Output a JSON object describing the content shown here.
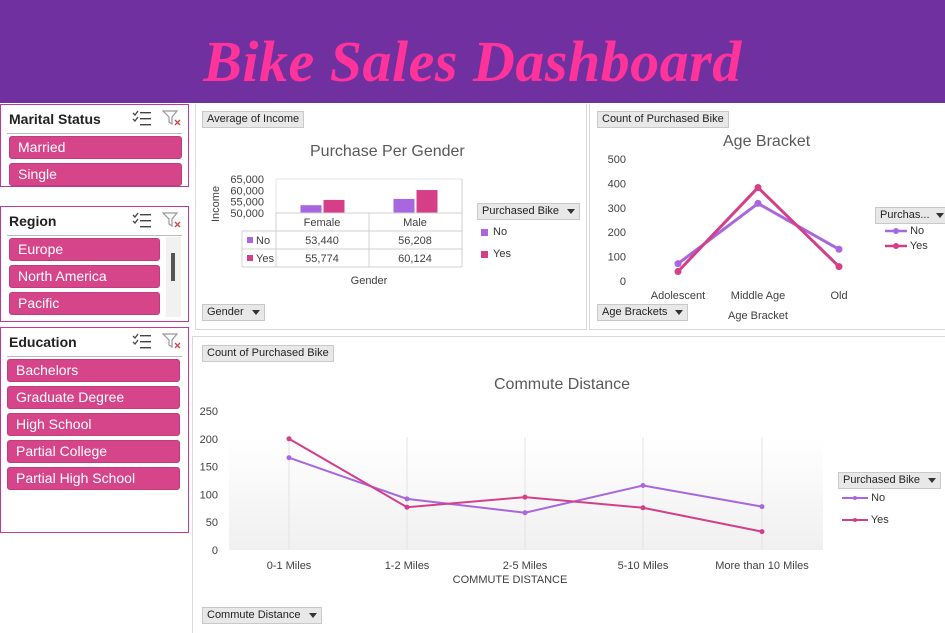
{
  "header": {
    "title": "Bike Sales Dashboard"
  },
  "colors": {
    "header_bg": "#7030a0",
    "title": "#ff3399",
    "slicer_item": "#d6458a",
    "series_no": "#a866e0",
    "series_yes": "#d43f88"
  },
  "slicers": {
    "marital": {
      "title": "Marital Status",
      "items": [
        "Married",
        "Single"
      ]
    },
    "region": {
      "title": "Region",
      "items": [
        "Europe",
        "North America",
        "Pacific"
      ]
    },
    "education": {
      "title": "Education",
      "items": [
        "Bachelors",
        "Graduate Degree",
        "High School",
        "Partial College",
        "Partial High School"
      ]
    },
    "icons": [
      "multi-select-icon",
      "clear-filter-icon"
    ]
  },
  "gender_chart": {
    "value_button": "Average of Income",
    "axis_button": "Gender",
    "legend_button": "Purchased Bike",
    "legend_items": [
      "No",
      "Yes"
    ]
  },
  "age_chart": {
    "value_button": "Count of Purchased Bike",
    "axis_button": "Age Brackets",
    "legend_button": "Purchas...",
    "legend_items": [
      "No",
      "Yes"
    ]
  },
  "commute_chart": {
    "value_button": "Count of Purchased Bike",
    "axis_button": "Commute Distance",
    "legend_button": "Purchased Bike",
    "legend_items": [
      "No",
      "Yes"
    ]
  },
  "chart_data": [
    {
      "type": "bar",
      "title": "Purchase Per Gender",
      "xlabel": "Gender",
      "ylabel": "Income",
      "categories": [
        "Female",
        "Male"
      ],
      "series": [
        {
          "name": "No",
          "values": [
            53440,
            56208
          ],
          "labels": [
            "53,440",
            "56,208"
          ]
        },
        {
          "name": "Yes",
          "values": [
            55774,
            60124
          ],
          "labels": [
            "55,774",
            "60,124"
          ]
        }
      ],
      "ylim": [
        50000,
        65000
      ],
      "yticks": [
        "65,000",
        "60,000",
        "55,000",
        "50,000"
      ],
      "data_table": true,
      "legend": "right"
    },
    {
      "type": "line",
      "title": "Age Bracket",
      "xlabel": "Age Bracket",
      "ylabel": "",
      "categories": [
        "Adolescent",
        "Middle Age",
        "Old"
      ],
      "series": [
        {
          "name": "No",
          "values": [
            71,
            318,
            130
          ]
        },
        {
          "name": "Yes",
          "values": [
            39,
            383,
            59
          ]
        }
      ],
      "ylim": [
        0,
        500
      ],
      "yticks": [
        "500",
        "400",
        "300",
        "200",
        "100",
        "0"
      ],
      "legend": "right"
    },
    {
      "type": "line",
      "title": "Commute Distance",
      "xlabel": "COMMUTE DISTANCE",
      "ylabel": "",
      "categories": [
        "0-1 Miles",
        "1-2 Miles",
        "2-5 Miles",
        "5-10 Miles",
        "More than 10 Miles"
      ],
      "series": [
        {
          "name": "No",
          "values": [
            166,
            92,
            67,
            116,
            78
          ]
        },
        {
          "name": "Yes",
          "values": [
            200,
            77,
            95,
            76,
            33
          ]
        }
      ],
      "ylim": [
        0,
        250
      ],
      "yticks": [
        "250",
        "200",
        "150",
        "100",
        "50",
        "0"
      ],
      "legend": "right"
    }
  ]
}
